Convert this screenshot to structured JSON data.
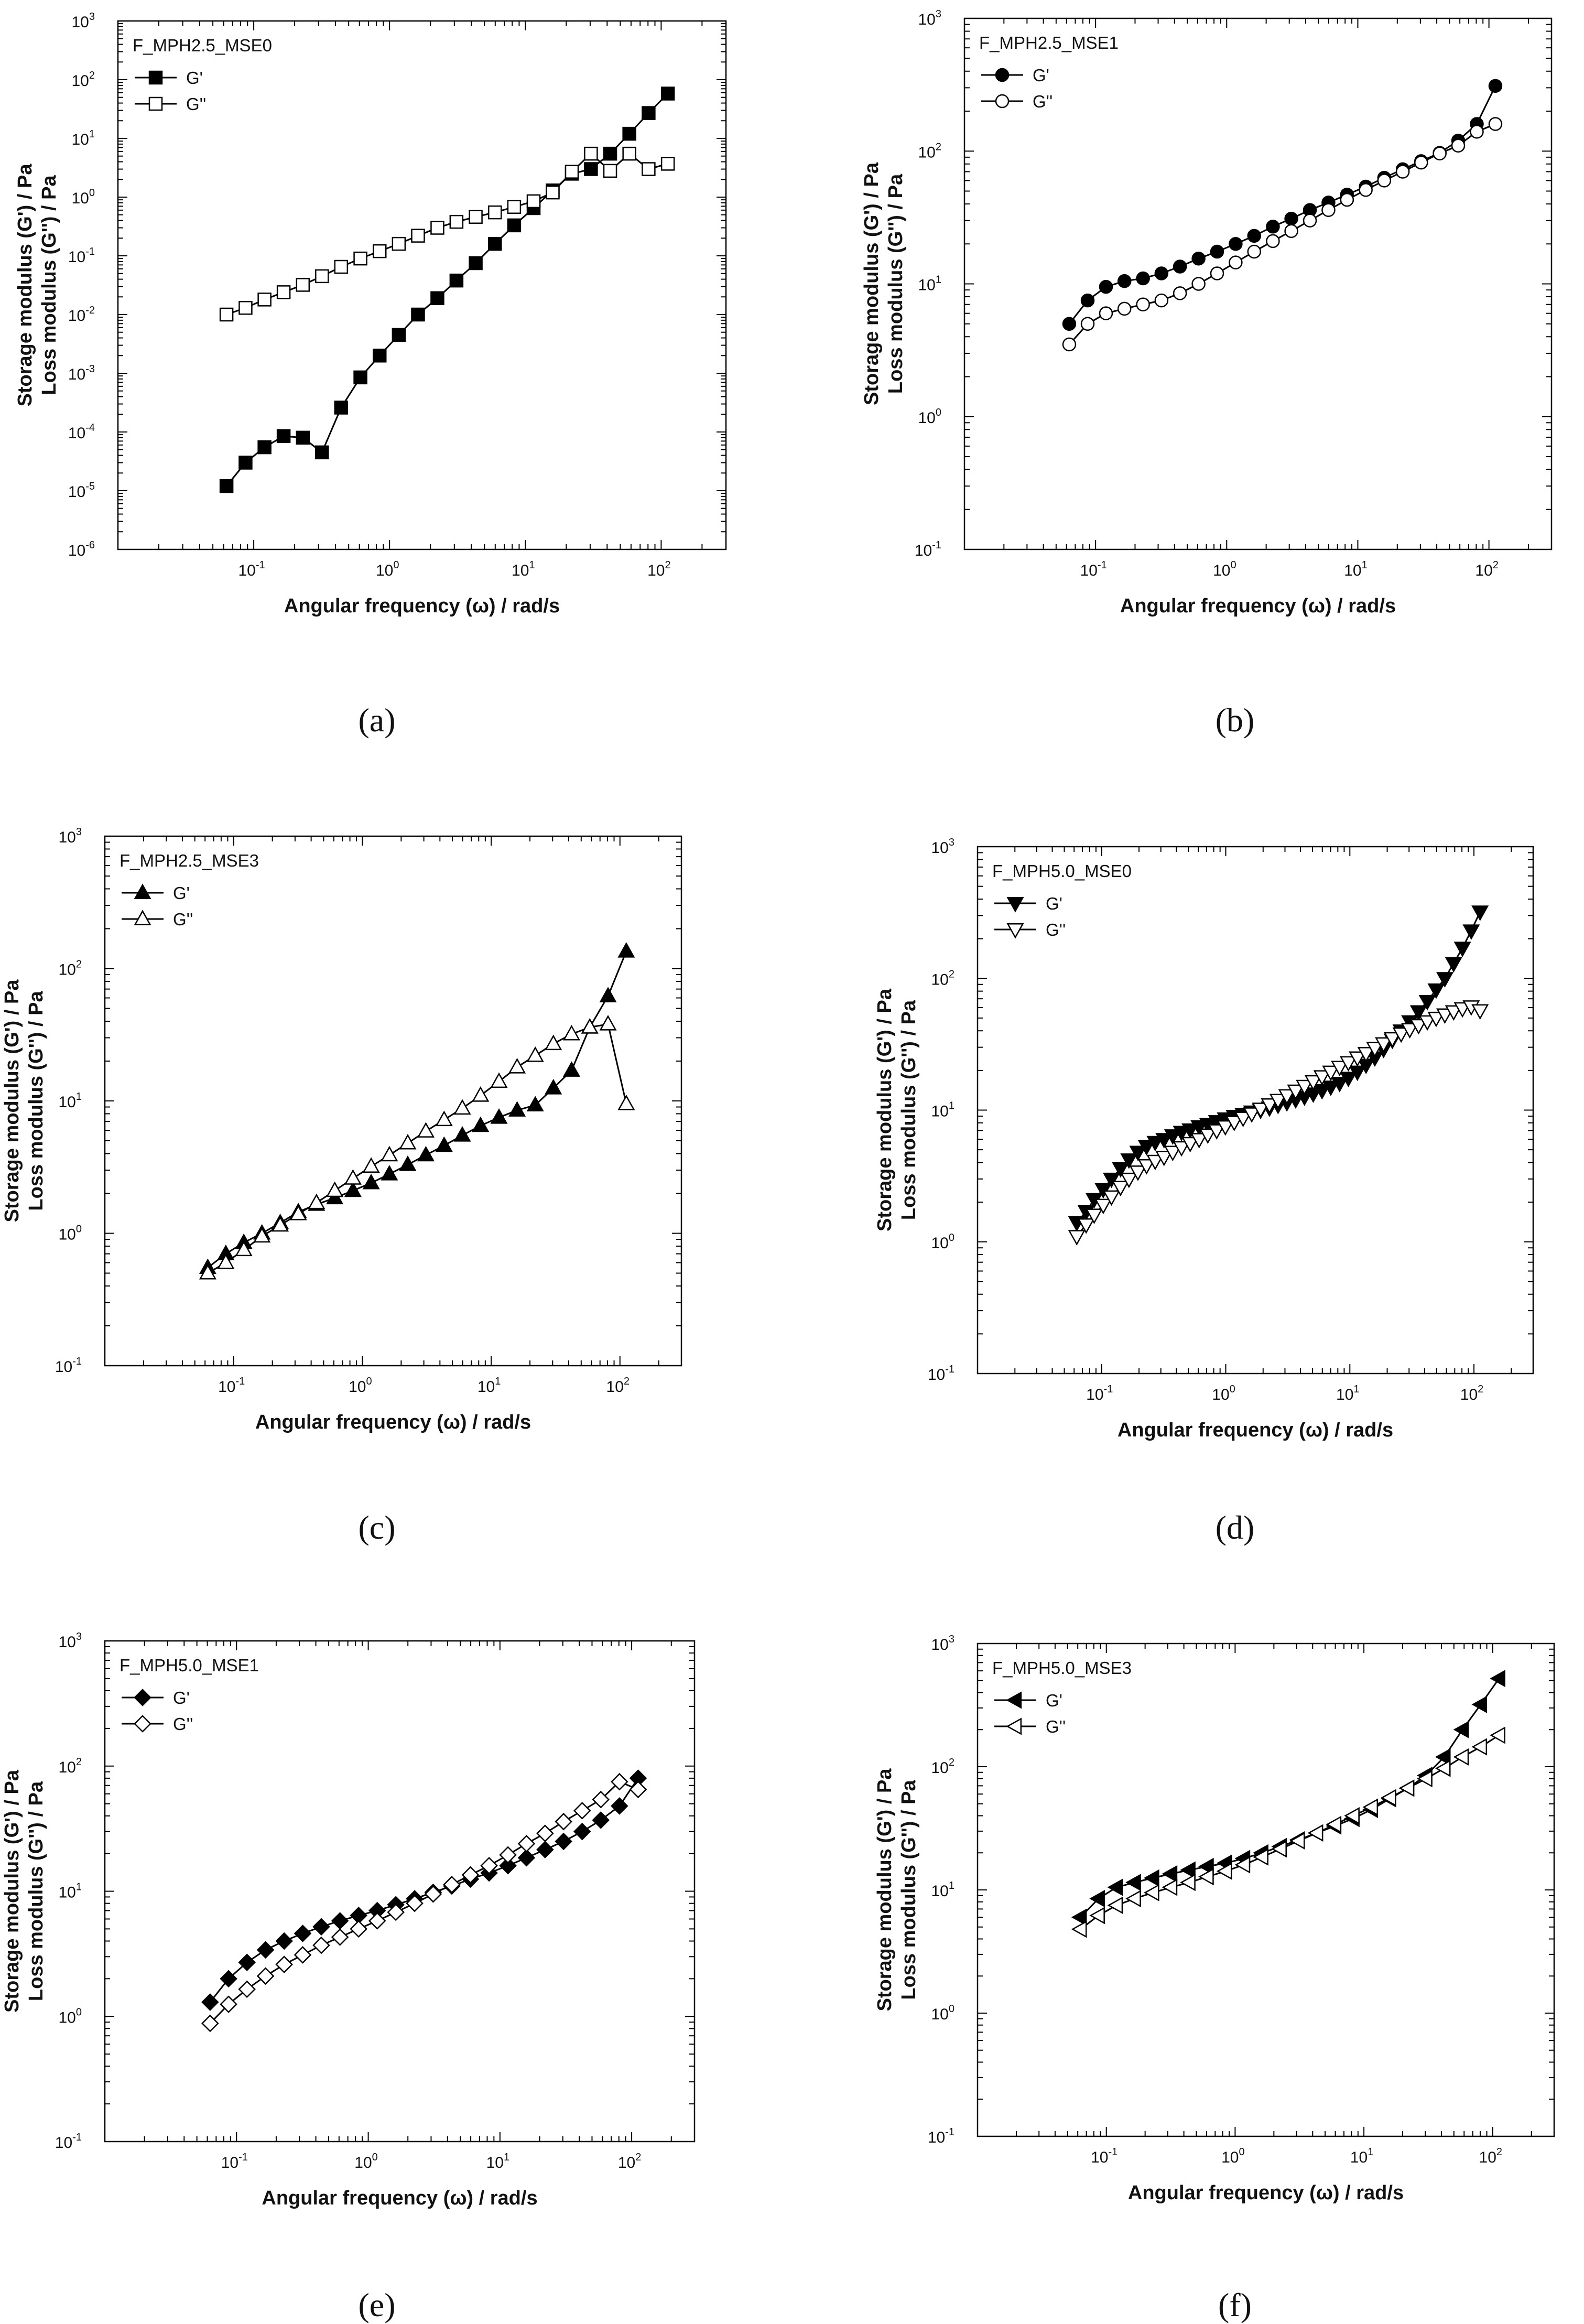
{
  "chart_data": [
    {
      "panel_label": "(a)",
      "type": "line",
      "title": "F_MPH2.5_MSE0",
      "xlabel": "Angular frequency (ω) / rad/s",
      "ylabel_lines": [
        "Storage modulus (G') / Pa",
        "Loss modulus (G'') / Pa"
      ],
      "xscale": "log",
      "yscale": "log",
      "xlim": [
        0.01,
        300
      ],
      "ylim": [
        1e-06,
        1000
      ],
      "x_tick_exponents": [
        -1,
        0,
        1,
        2
      ],
      "y_tick_exponents": [
        -6,
        -5,
        -4,
        -3,
        -2,
        -1,
        0,
        1,
        2,
        3
      ],
      "legend_position": "top-left",
      "series": [
        {
          "name": "G'",
          "marker": "square",
          "filled": true,
          "x": [
            0.063,
            0.087,
            0.12,
            0.166,
            0.23,
            0.318,
            0.44,
            0.61,
            0.845,
            1.17,
            1.62,
            2.25,
            3.11,
            4.31,
            5.97,
            8.27,
            11.5,
            15.9,
            22.0,
            30.4,
            42.1,
            58.3,
            80.8,
            112
          ],
          "y": [
            1.2e-05,
            3e-05,
            5.5e-05,
            8.5e-05,
            8e-05,
            4.5e-05,
            0.00026,
            0.00085,
            0.002,
            0.0045,
            0.01,
            0.019,
            0.038,
            0.075,
            0.16,
            0.33,
            0.65,
            1.3,
            2.5,
            3.0,
            5.5,
            12,
            27,
            58
          ]
        },
        {
          "name": "G''",
          "marker": "square",
          "filled": false,
          "x": [
            0.063,
            0.087,
            0.12,
            0.166,
            0.23,
            0.318,
            0.44,
            0.61,
            0.845,
            1.17,
            1.62,
            2.25,
            3.11,
            4.31,
            5.97,
            8.27,
            11.5,
            15.9,
            22.0,
            30.4,
            42.1,
            58.3,
            80.8,
            112
          ],
          "y": [
            0.01,
            0.013,
            0.018,
            0.024,
            0.032,
            0.045,
            0.065,
            0.09,
            0.12,
            0.16,
            0.22,
            0.3,
            0.38,
            0.46,
            0.55,
            0.68,
            0.85,
            1.2,
            2.7,
            5.5,
            2.8,
            5.5,
            3.0,
            3.7
          ]
        }
      ]
    },
    {
      "panel_label": "(b)",
      "type": "line",
      "title": "F_MPH2.5_MSE1",
      "xlabel": "Angular frequency (ω) / rad/s",
      "ylabel_lines": [
        "Storage modulus (G') / Pa",
        "Loss modulus (G'') / Pa"
      ],
      "xscale": "log",
      "yscale": "log",
      "xlim": [
        0.01,
        300
      ],
      "ylim": [
        0.1,
        1000
      ],
      "x_tick_exponents": [
        -1,
        0,
        1,
        2
      ],
      "y_tick_exponents": [
        -1,
        0,
        1,
        2,
        3
      ],
      "legend_position": "top-left",
      "series": [
        {
          "name": "G'",
          "marker": "circle",
          "filled": true,
          "x": [
            0.063,
            0.087,
            0.12,
            0.166,
            0.23,
            0.318,
            0.44,
            0.61,
            0.845,
            1.17,
            1.62,
            2.25,
            3.11,
            4.31,
            5.97,
            8.27,
            11.5,
            15.9,
            22.0,
            30.4,
            42.1,
            58.3,
            80.8,
            112
          ],
          "y": [
            5.0,
            7.5,
            9.5,
            10.5,
            11.0,
            12.0,
            13.5,
            15.5,
            17.5,
            20.0,
            23.0,
            27.0,
            31.0,
            36.0,
            41.0,
            47.0,
            54.0,
            63.0,
            73.0,
            84.0,
            97.0,
            120,
            160,
            310
          ]
        },
        {
          "name": "G''",
          "marker": "circle",
          "filled": false,
          "x": [
            0.063,
            0.087,
            0.12,
            0.166,
            0.23,
            0.318,
            0.44,
            0.61,
            0.845,
            1.17,
            1.62,
            2.25,
            3.11,
            4.31,
            5.97,
            8.27,
            11.5,
            15.9,
            22.0,
            30.4,
            42.1,
            58.3,
            80.8,
            112
          ],
          "y": [
            3.5,
            5.0,
            6.0,
            6.5,
            7.0,
            7.5,
            8.5,
            10.0,
            12.0,
            14.5,
            17.5,
            21.0,
            25.0,
            30.0,
            36.0,
            43.0,
            51.0,
            60.0,
            70.0,
            82.0,
            96.0,
            110,
            140,
            160
          ]
        }
      ]
    },
    {
      "panel_label": "(c)",
      "type": "line",
      "title": "F_MPH2.5_MSE3",
      "xlabel": "Angular frequency (ω) / rad/s",
      "ylabel_lines": [
        "Storage modulus (G') / Pa",
        "Loss modulus (G'') / Pa"
      ],
      "xscale": "log",
      "yscale": "log",
      "xlim": [
        0.01,
        300
      ],
      "ylim": [
        0.1,
        1000
      ],
      "x_tick_exponents": [
        -1,
        0,
        1,
        2
      ],
      "y_tick_exponents": [
        -1,
        0,
        1,
        2,
        3
      ],
      "legend_position": "top-left",
      "series": [
        {
          "name": "G'",
          "marker": "triangle-up",
          "filled": true,
          "x": [
            0.063,
            0.087,
            0.12,
            0.166,
            0.23,
            0.318,
            0.44,
            0.61,
            0.845,
            1.17,
            1.62,
            2.25,
            3.11,
            4.31,
            5.97,
            8.27,
            11.5,
            15.9,
            22.0,
            30.4,
            42.1,
            58.3,
            80.8,
            112
          ],
          "y": [
            0.55,
            0.7,
            0.85,
            1.0,
            1.2,
            1.45,
            1.65,
            1.85,
            2.1,
            2.4,
            2.8,
            3.3,
            3.9,
            4.6,
            5.5,
            6.5,
            7.5,
            8.5,
            9.3,
            12.5,
            17.0,
            36,
            62,
            135
          ]
        },
        {
          "name": "G''",
          "marker": "triangle-up",
          "filled": false,
          "x": [
            0.063,
            0.087,
            0.12,
            0.166,
            0.23,
            0.318,
            0.44,
            0.61,
            0.845,
            1.17,
            1.62,
            2.25,
            3.11,
            4.31,
            5.97,
            8.27,
            11.5,
            15.9,
            22.0,
            30.4,
            42.1,
            58.3,
            80.8,
            112
          ],
          "y": [
            0.5,
            0.6,
            0.75,
            0.95,
            1.15,
            1.4,
            1.7,
            2.1,
            2.6,
            3.2,
            3.9,
            4.8,
            5.9,
            7.2,
            8.8,
            11.0,
            14.0,
            18.0,
            22.0,
            27.0,
            32.0,
            36.0,
            38.0,
            9.5
          ]
        }
      ]
    },
    {
      "panel_label": "(d)",
      "type": "line",
      "title": "F_MPH5.0_MSE0",
      "xlabel": "Angular frequency (ω) / rad/s",
      "ylabel_lines": [
        "Storage modulus (G') / Pa",
        "Loss modulus (G'') / Pa"
      ],
      "xscale": "log",
      "yscale": "log",
      "xlim": [
        0.01,
        300
      ],
      "ylim": [
        0.1,
        1000
      ],
      "x_tick_exponents": [
        -1,
        0,
        1,
        2
      ],
      "y_tick_exponents": [
        -1,
        0,
        1,
        2,
        3
      ],
      "legend_position": "top-left",
      "series": [
        {
          "name": "G'",
          "marker": "triangle-down",
          "filled": true,
          "x": [
            0.063,
            0.075,
            0.087,
            0.103,
            0.12,
            0.142,
            0.166,
            0.196,
            0.23,
            0.27,
            0.318,
            0.374,
            0.44,
            0.517,
            0.61,
            0.717,
            0.845,
            0.993,
            1.17,
            1.38,
            1.62,
            1.91,
            2.25,
            2.64,
            3.11,
            3.66,
            4.31,
            5.07,
            5.97,
            7.02,
            8.27,
            9.73,
            11.5,
            13.5,
            15.9,
            18.7,
            22.0,
            25.9,
            30.4,
            35.8,
            42.1,
            49.6,
            58.3,
            68.6,
            80.8,
            95.1,
            112
          ],
          "y": [
            1.4,
            1.7,
            2.1,
            2.5,
            3.0,
            3.6,
            4.2,
            4.8,
            5.3,
            5.7,
            6.0,
            6.4,
            6.8,
            7.1,
            7.5,
            7.8,
            8.2,
            8.6,
            9.0,
            9.3,
            9.7,
            10.0,
            10.4,
            10.9,
            11.4,
            12.0,
            12.6,
            13.3,
            14.1,
            15.0,
            16.0,
            17.5,
            19.5,
            22.0,
            25.0,
            29.0,
            34.0,
            40.0,
            47.0,
            56.0,
            67.0,
            82.0,
            100.0,
            130.0,
            170.0,
            230.0,
            320.0
          ]
        },
        {
          "name": "G''",
          "marker": "triangle-down",
          "filled": false,
          "x": [
            0.063,
            0.075,
            0.087,
            0.103,
            0.12,
            0.142,
            0.166,
            0.196,
            0.23,
            0.27,
            0.318,
            0.374,
            0.44,
            0.517,
            0.61,
            0.717,
            0.845,
            0.993,
            1.17,
            1.38,
            1.62,
            1.91,
            2.25,
            2.64,
            3.11,
            3.66,
            4.31,
            5.07,
            5.97,
            7.02,
            8.27,
            9.73,
            11.5,
            13.5,
            15.9,
            18.7,
            22.0,
            25.9,
            30.4,
            35.8,
            42.1,
            49.6,
            58.3,
            68.6,
            80.8,
            95.1,
            112
          ],
          "y": [
            1.1,
            1.35,
            1.6,
            1.9,
            2.2,
            2.6,
            3.0,
            3.4,
            3.8,
            4.1,
            4.4,
            4.8,
            5.2,
            5.6,
            6.0,
            6.5,
            7.0,
            7.5,
            8.1,
            8.7,
            9.4,
            10.2,
            11.0,
            11.9,
            12.9,
            14.0,
            15.2,
            16.5,
            18.0,
            19.5,
            21.2,
            23.0,
            25.0,
            27.0,
            29.5,
            32.0,
            35.0,
            38.0,
            41.0,
            44.0,
            47.0,
            50.0,
            53.0,
            56.0,
            59.0,
            61.0,
            57.0
          ]
        }
      ]
    },
    {
      "panel_label": "(e)",
      "type": "line",
      "title": "F_MPH5.0_MSE1",
      "xlabel": "Angular frequency (ω) / rad/s",
      "ylabel_lines": [
        "Storage modulus (G') / Pa",
        "Loss modulus (G'') / Pa"
      ],
      "xscale": "log",
      "yscale": "log",
      "xlim": [
        0.01,
        300
      ],
      "ylim": [
        0.1,
        1000
      ],
      "x_tick_exponents": [
        -1,
        0,
        1,
        2
      ],
      "y_tick_exponents": [
        -1,
        0,
        1,
        2,
        3
      ],
      "legend_position": "top-left",
      "series": [
        {
          "name": "G'",
          "marker": "diamond",
          "filled": true,
          "x": [
            0.063,
            0.087,
            0.12,
            0.166,
            0.23,
            0.318,
            0.44,
            0.61,
            0.845,
            1.17,
            1.62,
            2.25,
            3.11,
            4.31,
            5.97,
            8.27,
            11.5,
            15.9,
            22.0,
            30.4,
            42.1,
            58.3,
            80.8,
            112
          ],
          "y": [
            1.3,
            2.0,
            2.7,
            3.4,
            4.0,
            4.6,
            5.2,
            5.8,
            6.4,
            7.0,
            7.8,
            8.7,
            9.8,
            11.0,
            12.5,
            14.0,
            16.0,
            18.5,
            21.5,
            25.0,
            30.0,
            37.0,
            48.0,
            80.0
          ]
        },
        {
          "name": "G''",
          "marker": "diamond",
          "filled": false,
          "x": [
            0.063,
            0.087,
            0.12,
            0.166,
            0.23,
            0.318,
            0.44,
            0.61,
            0.845,
            1.17,
            1.62,
            2.25,
            3.11,
            4.31,
            5.97,
            8.27,
            11.5,
            15.9,
            22.0,
            30.4,
            42.1,
            58.3,
            80.8,
            112
          ],
          "y": [
            0.88,
            1.25,
            1.65,
            2.1,
            2.6,
            3.1,
            3.7,
            4.3,
            5.0,
            5.8,
            6.8,
            8.0,
            9.5,
            11.3,
            13.5,
            16.0,
            19.5,
            24.0,
            29.0,
            36.0,
            44.0,
            54.0,
            75.0,
            65.0
          ]
        }
      ]
    },
    {
      "panel_label": "(f)",
      "type": "line",
      "title": "F_MPH5.0_MSE3",
      "xlabel": "Angular frequency (ω) / rad/s",
      "ylabel_lines": [
        "Storage modulus (G') / Pa",
        "Loss modulus (G'') / Pa"
      ],
      "xscale": "log",
      "yscale": "log",
      "xlim": [
        0.01,
        300
      ],
      "ylim": [
        0.1,
        1000
      ],
      "x_tick_exponents": [
        -1,
        0,
        1,
        2
      ],
      "y_tick_exponents": [
        -1,
        0,
        1,
        2,
        3
      ],
      "legend_position": "top-left",
      "series": [
        {
          "name": "G'",
          "marker": "triangle-left",
          "filled": true,
          "x": [
            0.063,
            0.087,
            0.12,
            0.166,
            0.23,
            0.318,
            0.44,
            0.61,
            0.845,
            1.17,
            1.62,
            2.25,
            3.11,
            4.31,
            5.97,
            8.27,
            11.5,
            15.9,
            22.0,
            30.4,
            42.1,
            58.3,
            80.8,
            112
          ],
          "y": [
            6.0,
            8.5,
            10.5,
            11.5,
            12.5,
            13.5,
            14.5,
            15.5,
            16.5,
            18.0,
            20.0,
            22.5,
            25.5,
            29.0,
            33.0,
            38.0,
            45.0,
            55.0,
            67.0,
            85.0,
            120,
            200,
            320,
            520
          ]
        },
        {
          "name": "G''",
          "marker": "triangle-left",
          "filled": false,
          "x": [
            0.063,
            0.087,
            0.12,
            0.166,
            0.23,
            0.318,
            0.44,
            0.61,
            0.845,
            1.17,
            1.62,
            2.25,
            3.11,
            4.31,
            5.97,
            8.27,
            11.5,
            15.9,
            22.0,
            30.4,
            42.1,
            58.3,
            80.8,
            112
          ],
          "y": [
            4.8,
            6.2,
            7.5,
            8.5,
            9.5,
            10.5,
            11.5,
            12.8,
            14.2,
            16.0,
            18.5,
            21.5,
            25.0,
            29.0,
            34.0,
            40.0,
            47.0,
            56.0,
            67.0,
            80.0,
            97.0,
            120,
            145,
            180
          ]
        }
      ]
    }
  ]
}
